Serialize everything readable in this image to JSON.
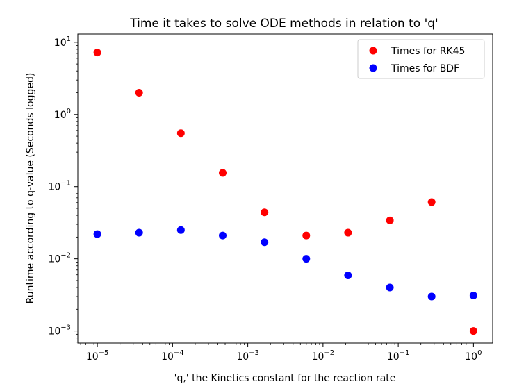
{
  "chart_data": {
    "type": "scatter",
    "title": "Time it takes to solve ODE methods in relation to 'q'",
    "xlabel": "'q,' the Kinetics constant for the reaction rate",
    "ylabel": "Runtime according to q-value (Seconds logged)",
    "xscale": "log",
    "yscale": "log",
    "xlim": [
      5.5e-06,
      1.8
    ],
    "ylim": [
      0.00068,
      13
    ],
    "x_ticks": [
      {
        "value": 1e-05,
        "base": "10",
        "exp": "−5"
      },
      {
        "value": 0.0001,
        "base": "10",
        "exp": "−4"
      },
      {
        "value": 0.001,
        "base": "10",
        "exp": "−3"
      },
      {
        "value": 0.01,
        "base": "10",
        "exp": "−2"
      },
      {
        "value": 0.1,
        "base": "10",
        "exp": "−1"
      },
      {
        "value": 1,
        "base": "10",
        "exp": "0"
      }
    ],
    "y_ticks": [
      {
        "value": 0.001,
        "base": "10",
        "exp": "−3"
      },
      {
        "value": 0.01,
        "base": "10",
        "exp": "−2"
      },
      {
        "value": 0.1,
        "base": "10",
        "exp": "−1"
      },
      {
        "value": 1,
        "base": "10",
        "exp": "0"
      },
      {
        "value": 10,
        "base": "10",
        "exp": "1"
      }
    ],
    "grid": false,
    "legend_position": "top-right",
    "x": [
      1e-05,
      3.59e-05,
      0.000129,
      0.000464,
      0.00167,
      0.00599,
      0.0215,
      0.0774,
      0.278,
      1.0
    ],
    "series": [
      {
        "name": "Times for RK45",
        "color": "#ff0000",
        "values": [
          7.2,
          2.0,
          0.55,
          0.155,
          0.044,
          0.021,
          0.023,
          0.034,
          0.061,
          0.001
        ]
      },
      {
        "name": "Times for BDF",
        "color": "#0000ff",
        "values": [
          0.022,
          0.023,
          0.025,
          0.021,
          0.017,
          0.01,
          0.0059,
          0.004,
          0.003,
          0.0031
        ]
      }
    ]
  }
}
